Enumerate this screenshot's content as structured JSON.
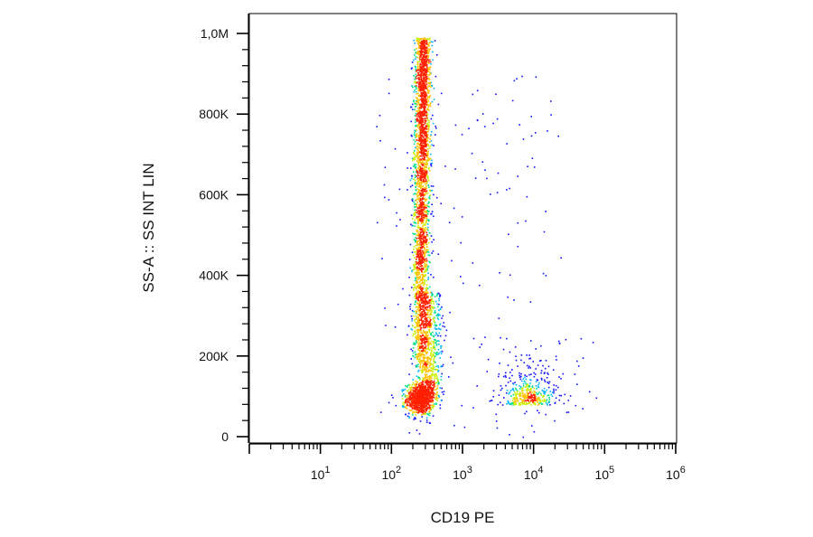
{
  "chart_data": {
    "type": "scatter",
    "title": "",
    "xlabel": "CD19 PE",
    "ylabel": "SS-A :: SS INT LIN",
    "x_scale": "log",
    "y_scale": "linear",
    "xlim": [
      1,
      1000000
    ],
    "ylim": [
      0,
      1000000
    ],
    "x_ticks": [
      {
        "value": 10,
        "base": "10",
        "exp": "1"
      },
      {
        "value": 100,
        "base": "10",
        "exp": "2"
      },
      {
        "value": 1000,
        "base": "10",
        "exp": "3"
      },
      {
        "value": 10000,
        "base": "10",
        "exp": "4"
      },
      {
        "value": 100000,
        "base": "10",
        "exp": "5"
      },
      {
        "value": 1000000,
        "base": "10",
        "exp": "6"
      }
    ],
    "y_ticks": [
      {
        "value": 0,
        "label": "0"
      },
      {
        "value": 200000,
        "label": "200K"
      },
      {
        "value": 400000,
        "label": "400K"
      },
      {
        "value": 600000,
        "label": "600K"
      },
      {
        "value": 800000,
        "label": "800K"
      },
      {
        "value": 1000000,
        "label": "1,0M"
      }
    ],
    "grid": false,
    "legend": "none",
    "colormap": [
      "#1010ff",
      "#00b4ff",
      "#00e08a",
      "#c8f000",
      "#ffc000",
      "#ff2000"
    ],
    "populations": [
      {
        "center_x": 250,
        "center_y": 95000,
        "spread_log_x": 0.12,
        "spread_y": 22000,
        "density": "high"
      },
      {
        "center_x": 280,
        "center_y": 560000,
        "spread_log_x": 0.09,
        "spread_y": 300000,
        "density": "high"
      },
      {
        "center_x": 9000,
        "center_y": 85000,
        "spread_log_x": 0.2,
        "spread_y": 25000,
        "density": "medium"
      }
    ]
  }
}
